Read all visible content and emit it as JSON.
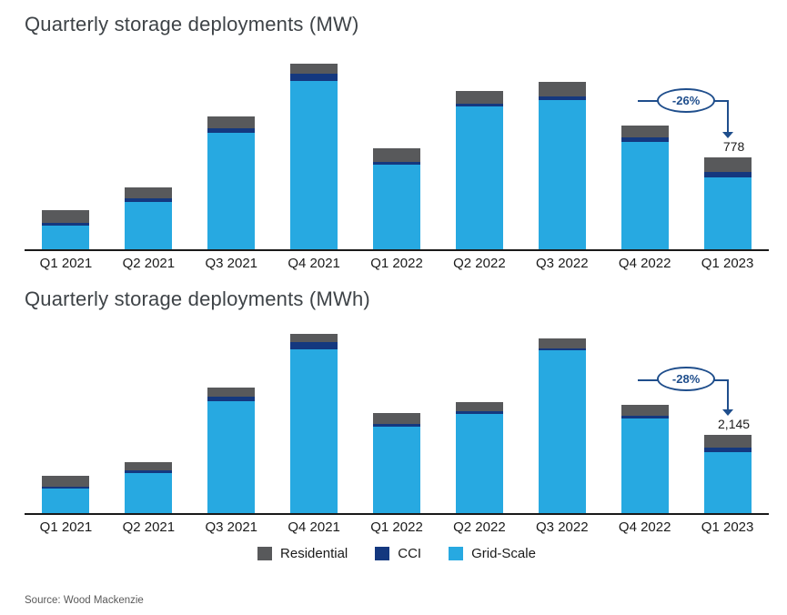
{
  "page": {
    "source": "Source: Wood Mackenzie"
  },
  "colors": {
    "grid_scale": "#27a9e1",
    "cci": "#14387f",
    "residential": "#58595b",
    "annotation": "#1f4e8c",
    "axis": "#1a1a1a"
  },
  "legend": {
    "position": "bottom-center",
    "items": [
      {
        "label": "Residential",
        "color_key": "residential"
      },
      {
        "label": "CCI",
        "color_key": "cci"
      },
      {
        "label": "Grid-Scale",
        "color_key": "grid_scale"
      }
    ]
  },
  "chart_data": [
    {
      "type": "bar",
      "stacked": true,
      "title": "Quarterly storage deployments (MW)",
      "unit": "MW",
      "categories": [
        "Q1 2021",
        "Q2 2021",
        "Q3 2021",
        "Q4 2021",
        "Q1 2022",
        "Q2 2022",
        "Q3 2022",
        "Q4 2022",
        "Q1 2023"
      ],
      "series": [
        {
          "name": "Grid-Scale",
          "values": [
            200,
            400,
            990,
            1430,
            720,
            1210,
            1270,
            915,
            610
          ]
        },
        {
          "name": "CCI",
          "values": [
            25,
            30,
            40,
            65,
            25,
            25,
            25,
            35,
            48
          ]
        },
        {
          "name": "Residential",
          "values": [
            105,
            95,
            95,
            85,
            115,
            110,
            125,
            100,
            120
          ]
        }
      ],
      "totals": [
        330,
        525,
        1125,
        1580,
        860,
        1345,
        1420,
        1050,
        778
      ],
      "ylim": [
        0,
        1700
      ],
      "grid": false,
      "annotation": {
        "change_label": "-26%",
        "value_label": "778",
        "from_category": "Q4 2022",
        "target_category": "Q1 2023"
      }
    },
    {
      "type": "bar",
      "stacked": true,
      "title": "Quarterly storage deployments (MWh)",
      "unit": "MWh",
      "categories": [
        "Q1 2021",
        "Q2 2021",
        "Q3 2021",
        "Q4 2021",
        "Q1 2022",
        "Q2 2022",
        "Q3 2022",
        "Q4 2022",
        "Q1 2023"
      ],
      "series": [
        {
          "name": "Grid-Scale",
          "values": [
            670,
            1095,
            3070,
            4500,
            2385,
            2720,
            4475,
            2600,
            1667
          ]
        },
        {
          "name": "CCI",
          "values": [
            50,
            70,
            120,
            190,
            70,
            70,
            50,
            70,
            145
          ]
        },
        {
          "name": "Residential",
          "values": [
            305,
            240,
            260,
            240,
            285,
            260,
            285,
            310,
            333
          ]
        }
      ],
      "totals": [
        1025,
        1405,
        3450,
        4930,
        2740,
        3050,
        4810,
        2980,
        2145
      ],
      "ylim": [
        0,
        5200
      ],
      "grid": false,
      "annotation": {
        "change_label": "-28%",
        "value_label": "2,145",
        "from_category": "Q4 2022",
        "target_category": "Q1 2023"
      }
    }
  ]
}
